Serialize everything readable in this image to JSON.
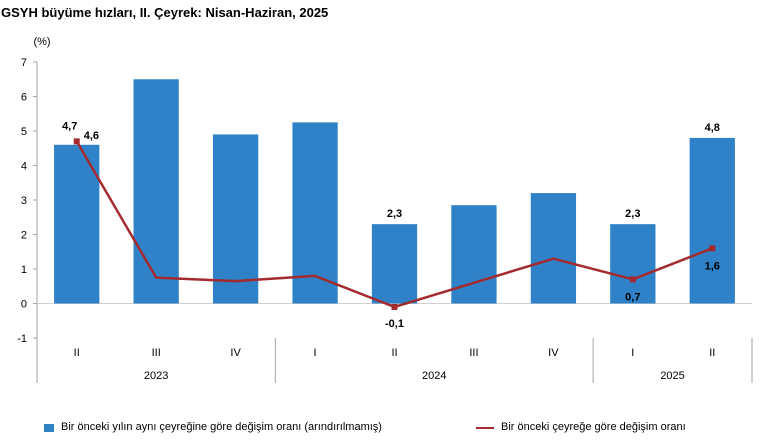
{
  "chart_data": {
    "type": "bar",
    "title": "GSYH büyüme hızları, II. Çeyrek: Nisan-Haziran, 2025",
    "ylabel": "(%)",
    "ylim": [
      -1,
      7
    ],
    "yticks": [
      -1,
      0,
      1,
      2,
      3,
      4,
      5,
      6,
      7
    ],
    "grid": false,
    "legend_position": "bottom",
    "categories": [
      "II",
      "III",
      "IV",
      "I",
      "II",
      "III",
      "IV",
      "I",
      "II"
    ],
    "year_groups": [
      {
        "label": "2023",
        "start": 0,
        "end": 2
      },
      {
        "label": "2024",
        "start": 3,
        "end": 6
      },
      {
        "label": "2025",
        "start": 7,
        "end": 8
      }
    ],
    "series": [
      {
        "name": "Bir önceki yılın aynı çeyreğine göre değişim oranı (arındırılmamış)",
        "type": "bar",
        "color": "#2f82c8",
        "values": [
          4.6,
          6.5,
          4.9,
          5.25,
          2.3,
          2.85,
          3.2,
          2.3,
          4.8
        ],
        "labels": [
          "4,6",
          "",
          "",
          "",
          "2,3",
          "",
          "",
          "2,3",
          "4,8"
        ]
      },
      {
        "name": "Bir önceki çeyreğe göre değişim oranı",
        "type": "line",
        "color": "#a32a2f",
        "values": [
          4.7,
          0.75,
          0.65,
          0.8,
          -0.1,
          0.6,
          1.3,
          0.7,
          1.6
        ],
        "labels": [
          "4,7",
          "",
          "",
          "",
          "-0,1",
          "",
          "",
          "0,7",
          "1,6"
        ]
      }
    ]
  }
}
